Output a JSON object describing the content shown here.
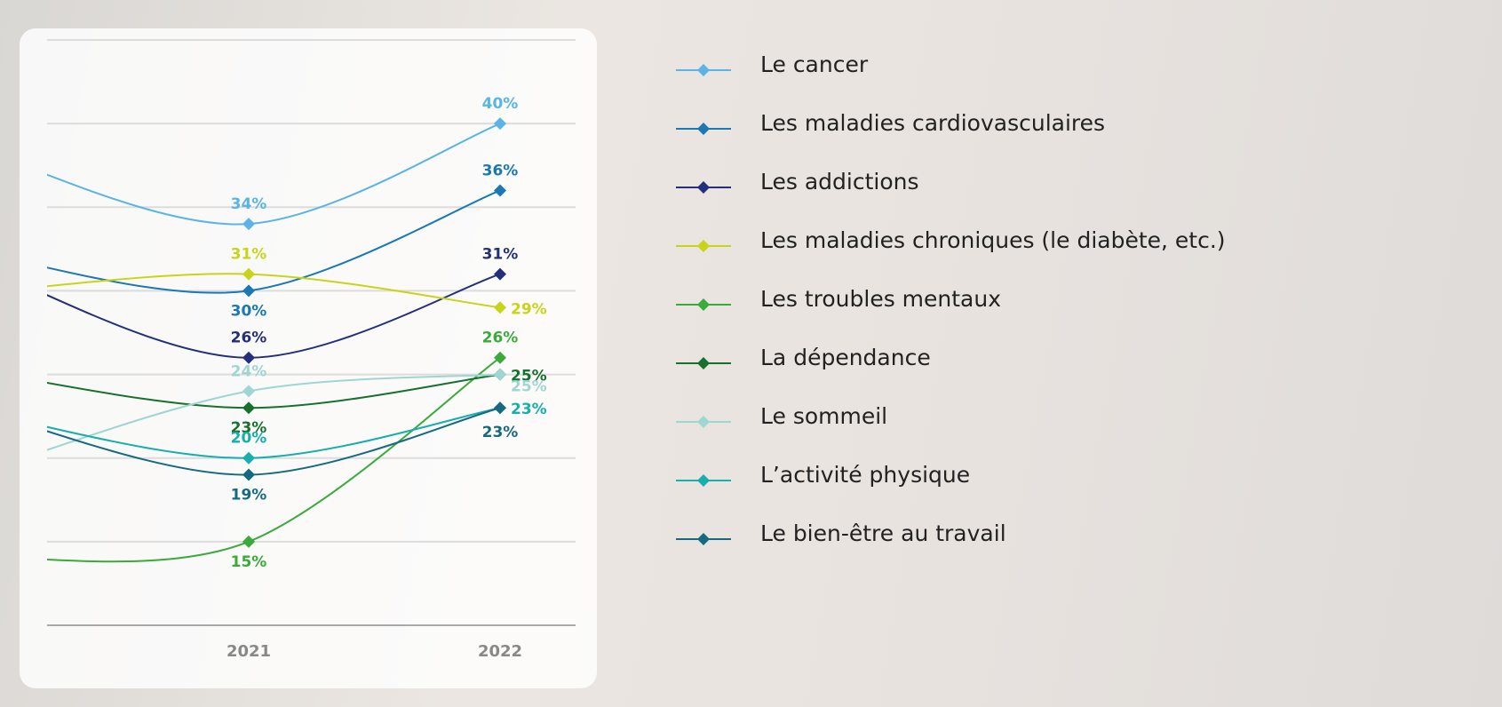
{
  "chart_data": {
    "type": "line",
    "categories": [
      null,
      "2021",
      "2022"
    ],
    "ylim": [
      10,
      45
    ],
    "yticks": [
      10,
      15,
      20,
      25,
      30,
      35,
      40,
      45
    ],
    "grid": true,
    "legend": "right",
    "series": [
      {
        "name": "Le cancer",
        "color": "#5ab4e5",
        "values": [
          38,
          34,
          40
        ],
        "value_labels": [
          null,
          "34%",
          "40%"
        ]
      },
      {
        "name": "Les maladies cardiovasculaires",
        "color": "#1a78b4",
        "values": [
          32,
          30,
          36
        ],
        "value_labels": [
          null,
          "30%",
          "36%"
        ]
      },
      {
        "name": "Les addictions",
        "color": "#232f7a",
        "values": [
          31,
          26,
          31
        ],
        "value_labels": [
          null,
          "26%",
          "31%"
        ]
      },
      {
        "name": "Les maladies chroniques (le diabète, etc.)",
        "color": "#c8d418",
        "values": [
          30,
          31,
          29
        ],
        "value_labels": [
          null,
          "31%",
          "29%"
        ]
      },
      {
        "name": "Les troubles mentaux",
        "color": "#3aaa3a",
        "values": [
          14,
          15,
          26
        ],
        "value_labels": [
          null,
          "15%",
          "26%"
        ]
      },
      {
        "name": "La dépendance",
        "color": "#16702e",
        "values": [
          25,
          23,
          25
        ],
        "value_labels": [
          null,
          "23%",
          "25%"
        ]
      },
      {
        "name": "Le sommeil",
        "color": "#9fd6d2",
        "values": [
          19.5,
          24,
          25
        ],
        "value_labels": [
          null,
          "24%",
          "25%"
        ]
      },
      {
        "name": "L’activité physique",
        "color": "#17aeae",
        "values": [
          22.5,
          20,
          23
        ],
        "value_labels": [
          null,
          "20%",
          "23%"
        ]
      },
      {
        "name": "Le bien-être au travail",
        "color": "#166a80",
        "values": [
          22.5,
          19,
          23
        ],
        "value_labels": [
          null,
          "19%",
          "23%"
        ]
      }
    ]
  }
}
